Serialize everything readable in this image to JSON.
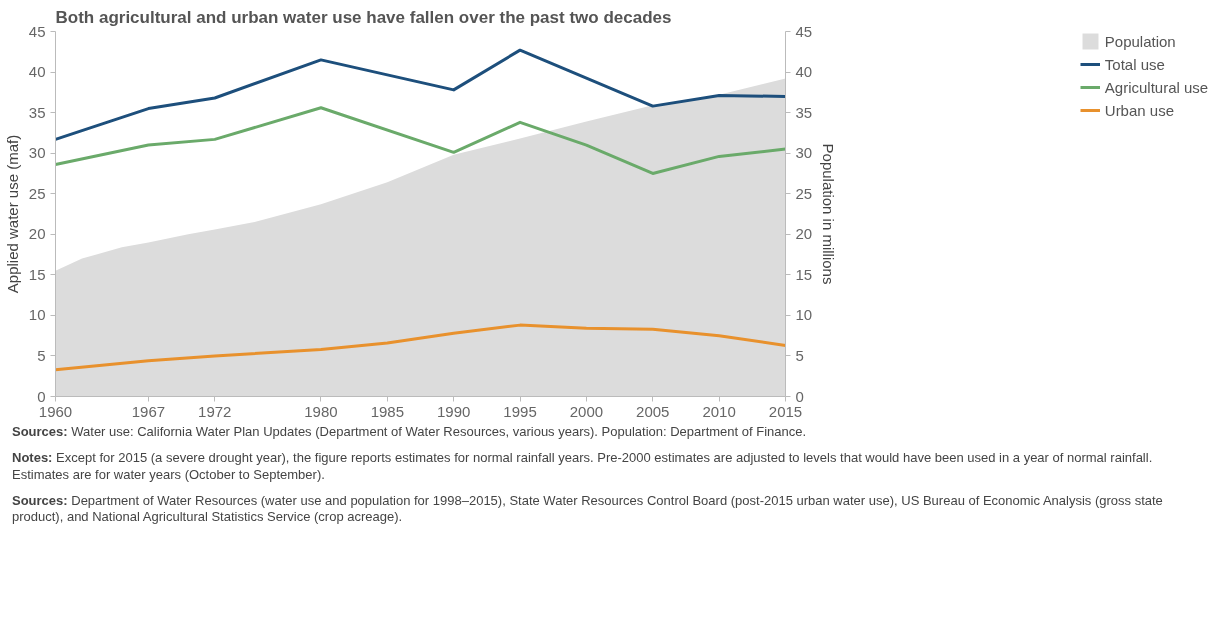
{
  "chart_data": {
    "type": "line",
    "title": "Both agricultural and urban water use have fallen over the past two decades",
    "ylabel": "Applied water use (maf)",
    "y2label": "Population in millions",
    "xlim": [
      1960,
      2015
    ],
    "xticks": [
      1960,
      1967,
      1972,
      1980,
      1985,
      1990,
      1995,
      2000,
      2005,
      2010,
      2015
    ],
    "ylim": [
      0,
      45
    ],
    "yticks": [
      0,
      5,
      10,
      15,
      20,
      25,
      30,
      35,
      40,
      45
    ],
    "y2lim": [
      0,
      45
    ],
    "y2ticks": [
      0,
      5,
      10,
      15,
      20,
      25,
      30,
      35,
      40,
      45
    ],
    "grid": false,
    "legend": "right",
    "series": [
      {
        "name": "Population",
        "type": "area",
        "axis": "y2",
        "color": "#dcdcdc",
        "x": [
          1960,
          1962,
          1965,
          1967,
          1970,
          1972,
          1975,
          1980,
          1985,
          1990,
          1995,
          2000,
          2005,
          2010,
          2015
        ],
        "values": [
          15.5,
          17.0,
          18.4,
          19.0,
          20.0,
          20.6,
          21.5,
          23.7,
          26.4,
          29.8,
          31.8,
          33.9,
          35.9,
          37.2,
          39.2
        ]
      },
      {
        "name": "Total use",
        "color": "#1d4f7c",
        "x": [
          1960,
          1967,
          1972,
          1980,
          1990,
          1995,
          2005,
          2010,
          2015
        ],
        "values": [
          31.7,
          35.5,
          36.8,
          41.5,
          37.8,
          42.7,
          35.8,
          37.1,
          37.0
        ]
      },
      {
        "name": "Agricultural use",
        "color": "#6aaa6a",
        "x": [
          1960,
          1967,
          1972,
          1980,
          1990,
          1995,
          2000,
          2005,
          2010,
          2015
        ],
        "values": [
          28.6,
          31.0,
          31.7,
          35.6,
          30.1,
          33.8,
          31.0,
          27.5,
          29.6,
          30.5
        ]
      },
      {
        "name": "Urban use",
        "color": "#e8912d",
        "x": [
          1960,
          1967,
          1972,
          1980,
          1985,
          1990,
          1995,
          2000,
          2005,
          2010,
          2015
        ],
        "values": [
          3.3,
          4.4,
          5.0,
          5.8,
          6.6,
          7.8,
          8.8,
          8.4,
          8.3,
          7.5,
          6.3
        ]
      }
    ],
    "annotations": [
      "Sources: Water use: California Water Plan Updates (Department of Water Resources, various years). Population: Department of Finance.",
      "Notes: Except for 2015 (a severe drought year), the figure reports estimates for normal rainfall years. Pre-2000 estimates are adjusted to levels that would have been used in a year of normal rainfall. Estimates are for water years (October to September).",
      "Sources: Department of Water Resources (water use and population for 1998–2015), State Water Resources Control Board (post-2015 urban water use), US Bureau of Economic Analysis (gross state product), and National Agricultural Statistics Service (crop acreage)."
    ]
  }
}
